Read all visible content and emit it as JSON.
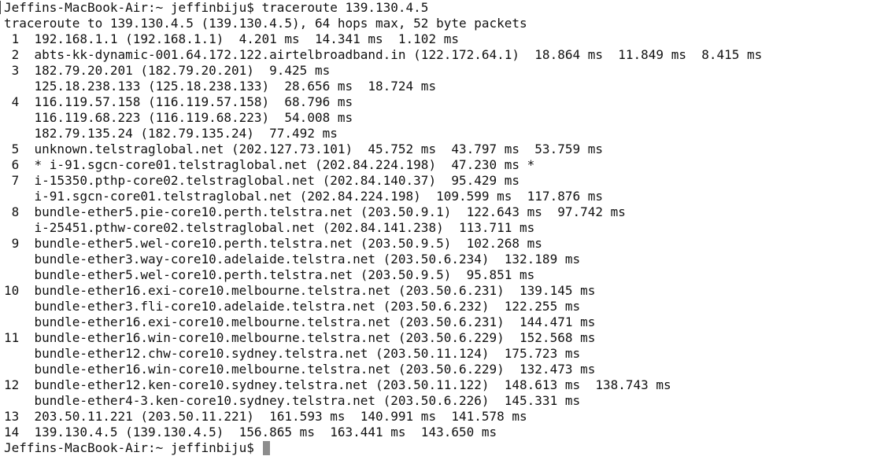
{
  "terminal": {
    "lines": [
      "Jeffins-MacBook-Air:~ jeffinbiju$ traceroute 139.130.4.5",
      "traceroute to 139.130.4.5 (139.130.4.5), 64 hops max, 52 byte packets",
      " 1  192.168.1.1 (192.168.1.1)  4.201 ms  14.341 ms  1.102 ms",
      " 2  abts-kk-dynamic-001.64.172.122.airtelbroadband.in (122.172.64.1)  18.864 ms  11.849 ms  8.415 ms",
      " 3  182.79.20.201 (182.79.20.201)  9.425 ms",
      "    125.18.238.133 (125.18.238.133)  28.656 ms  18.724 ms",
      " 4  116.119.57.158 (116.119.57.158)  68.796 ms",
      "    116.119.68.223 (116.119.68.223)  54.008 ms",
      "    182.79.135.24 (182.79.135.24)  77.492 ms",
      " 5  unknown.telstraglobal.net (202.127.73.101)  45.752 ms  43.797 ms  53.759 ms",
      " 6  * i-91.sgcn-core01.telstraglobal.net (202.84.224.198)  47.230 ms *",
      " 7  i-15350.pthp-core02.telstraglobal.net (202.84.140.37)  95.429 ms",
      "    i-91.sgcn-core01.telstraglobal.net (202.84.224.198)  109.599 ms  117.876 ms",
      " 8  bundle-ether5.pie-core10.perth.telstra.net (203.50.9.1)  122.643 ms  97.742 ms",
      "    i-25451.pthw-core02.telstraglobal.net (202.84.141.238)  113.711 ms",
      " 9  bundle-ether5.wel-core10.perth.telstra.net (203.50.9.5)  102.268 ms",
      "    bundle-ether3.way-core10.adelaide.telstra.net (203.50.6.234)  132.189 ms",
      "    bundle-ether5.wel-core10.perth.telstra.net (203.50.9.5)  95.851 ms",
      "10  bundle-ether16.exi-core10.melbourne.telstra.net (203.50.6.231)  139.145 ms",
      "    bundle-ether3.fli-core10.adelaide.telstra.net (203.50.6.232)  122.255 ms",
      "    bundle-ether16.exi-core10.melbourne.telstra.net (203.50.6.231)  144.471 ms",
      "11  bundle-ether16.win-core10.melbourne.telstra.net (203.50.6.229)  152.568 ms",
      "    bundle-ether12.chw-core10.sydney.telstra.net (203.50.11.124)  175.723 ms",
      "    bundle-ether16.win-core10.melbourne.telstra.net (203.50.6.229)  132.473 ms",
      "12  bundle-ether12.ken-core10.sydney.telstra.net (203.50.11.122)  148.613 ms  138.743 ms",
      "    bundle-ether4-3.ken-core10.sydney.telstra.net (203.50.6.226)  145.331 ms",
      "13  203.50.11.221 (203.50.11.221)  161.593 ms  140.991 ms  141.578 ms",
      "14  139.130.4.5 (139.130.4.5)  156.865 ms  163.441 ms  143.650 ms"
    ],
    "prompt": "Jeffins-MacBook-Air:~ jeffinbiju$ "
  },
  "colors": {
    "background": "#ffffff",
    "text": "#111111",
    "cursor": "#8d8d8d"
  }
}
